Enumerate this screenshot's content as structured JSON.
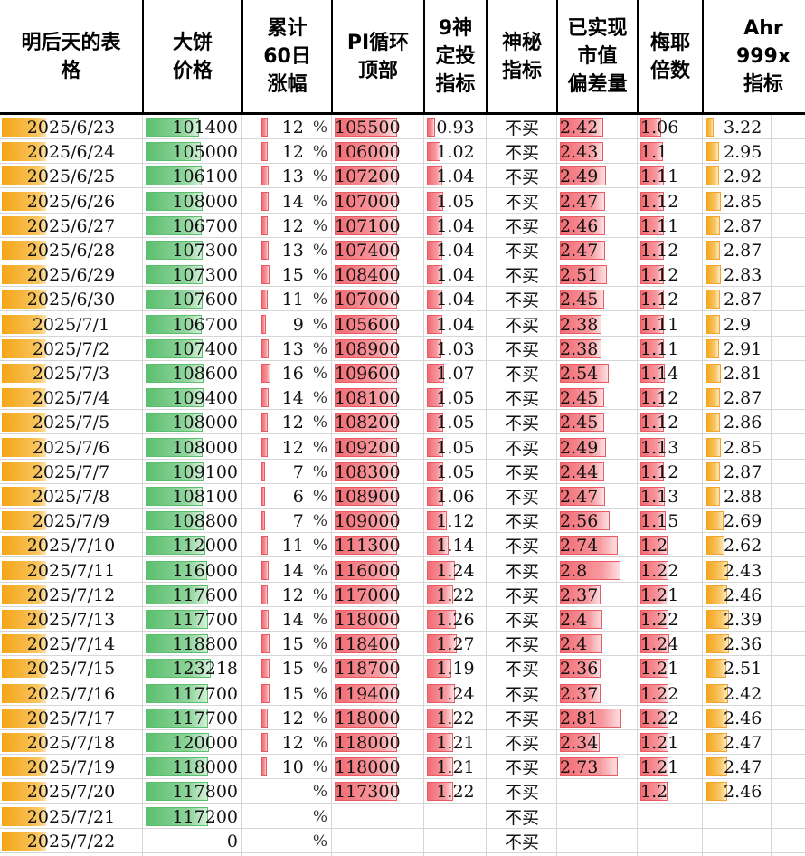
{
  "headers": {
    "date": "明后天的表\n格",
    "price": "大饼\n价格",
    "gain60": "累计\n60日\n涨幅",
    "pi_top": "PI循环\n顶部",
    "dca9": "9神\n定投\n指标",
    "secret": "神秘\n指标",
    "mvrv": "已实现\n市值\n偏差量",
    "mayer": "梅耶\n倍数",
    "ahr": "Ahr\n999x\n指标"
  },
  "percent_sign": "%",
  "rows": [
    {
      "date": "2025/6/23",
      "price": "101400",
      "gain": "12",
      "pi": "105500",
      "dca": "0.93",
      "secret": "不买",
      "mvrv": "2.42",
      "mayer": "1.06",
      "ahr": "3.22"
    },
    {
      "date": "2025/6/24",
      "price": "105000",
      "gain": "12",
      "pi": "106000",
      "dca": "1.02",
      "secret": "不买",
      "mvrv": "2.43",
      "mayer": "1.1",
      "ahr": "2.95"
    },
    {
      "date": "2025/6/25",
      "price": "106100",
      "gain": "13",
      "pi": "107200",
      "dca": "1.04",
      "secret": "不买",
      "mvrv": "2.49",
      "mayer": "1.11",
      "ahr": "2.92"
    },
    {
      "date": "2025/6/26",
      "price": "108000",
      "gain": "14",
      "pi": "107000",
      "dca": "1.05",
      "secret": "不买",
      "mvrv": "2.47",
      "mayer": "1.12",
      "ahr": "2.85"
    },
    {
      "date": "2025/6/27",
      "price": "106700",
      "gain": "12",
      "pi": "107100",
      "dca": "1.04",
      "secret": "不买",
      "mvrv": "2.46",
      "mayer": "1.11",
      "ahr": "2.87"
    },
    {
      "date": "2025/6/28",
      "price": "107300",
      "gain": "13",
      "pi": "107400",
      "dca": "1.04",
      "secret": "不买",
      "mvrv": "2.47",
      "mayer": "1.12",
      "ahr": "2.87"
    },
    {
      "date": "2025/6/29",
      "price": "107300",
      "gain": "15",
      "pi": "108400",
      "dca": "1.04",
      "secret": "不买",
      "mvrv": "2.51",
      "mayer": "1.12",
      "ahr": "2.83"
    },
    {
      "date": "2025/6/30",
      "price": "107600",
      "gain": "11",
      "pi": "107000",
      "dca": "1.04",
      "secret": "不买",
      "mvrv": "2.45",
      "mayer": "1.12",
      "ahr": "2.87"
    },
    {
      "date": "2025/7/1",
      "price": "106700",
      "gain": "9",
      "pi": "105600",
      "dca": "1.04",
      "secret": "不买",
      "mvrv": "2.38",
      "mayer": "1.11",
      "ahr": "2.9"
    },
    {
      "date": "2025/7/2",
      "price": "107400",
      "gain": "13",
      "pi": "108900",
      "dca": "1.03",
      "secret": "不买",
      "mvrv": "2.38",
      "mayer": "1.11",
      "ahr": "2.91"
    },
    {
      "date": "2025/7/3",
      "price": "108600",
      "gain": "16",
      "pi": "109600",
      "dca": "1.07",
      "secret": "不买",
      "mvrv": "2.54",
      "mayer": "1.14",
      "ahr": "2.81"
    },
    {
      "date": "2025/7/4",
      "price": "109400",
      "gain": "14",
      "pi": "108100",
      "dca": "1.05",
      "secret": "不买",
      "mvrv": "2.45",
      "mayer": "1.12",
      "ahr": "2.87"
    },
    {
      "date": "2025/7/5",
      "price": "108000",
      "gain": "12",
      "pi": "108200",
      "dca": "1.05",
      "secret": "不买",
      "mvrv": "2.45",
      "mayer": "1.12",
      "ahr": "2.86"
    },
    {
      "date": "2025/7/6",
      "price": "108000",
      "gain": "12",
      "pi": "109200",
      "dca": "1.05",
      "secret": "不买",
      "mvrv": "2.49",
      "mayer": "1.13",
      "ahr": "2.85"
    },
    {
      "date": "2025/7/7",
      "price": "109100",
      "gain": "7",
      "pi": "108300",
      "dca": "1.05",
      "secret": "不买",
      "mvrv": "2.44",
      "mayer": "1.12",
      "ahr": "2.87"
    },
    {
      "date": "2025/7/8",
      "price": "108100",
      "gain": "6",
      "pi": "108900",
      "dca": "1.06",
      "secret": "不买",
      "mvrv": "2.47",
      "mayer": "1.13",
      "ahr": "2.88"
    },
    {
      "date": "2025/7/9",
      "price": "108800",
      "gain": "7",
      "pi": "109000",
      "dca": "1.12",
      "secret": "不买",
      "mvrv": "2.56",
      "mayer": "1.15",
      "ahr": "2.69"
    },
    {
      "date": "2025/7/10",
      "price": "112000",
      "gain": "11",
      "pi": "111300",
      "dca": "1.14",
      "secret": "不买",
      "mvrv": "2.74",
      "mayer": "1.2",
      "ahr": "2.62"
    },
    {
      "date": "2025/7/11",
      "price": "116000",
      "gain": "14",
      "pi": "116000",
      "dca": "1.24",
      "secret": "不买",
      "mvrv": "2.8",
      "mayer": "1.22",
      "ahr": "2.43"
    },
    {
      "date": "2025/7/12",
      "price": "117600",
      "gain": "12",
      "pi": "117000",
      "dca": "1.22",
      "secret": "不买",
      "mvrv": "2.37",
      "mayer": "1.21",
      "ahr": "2.46"
    },
    {
      "date": "2025/7/13",
      "price": "117700",
      "gain": "14",
      "pi": "118000",
      "dca": "1.26",
      "secret": "不买",
      "mvrv": "2.4",
      "mayer": "1.22",
      "ahr": "2.39"
    },
    {
      "date": "2025/7/14",
      "price": "118800",
      "gain": "15",
      "pi": "118400",
      "dca": "1.27",
      "secret": "不买",
      "mvrv": "2.4",
      "mayer": "1.24",
      "ahr": "2.36"
    },
    {
      "date": "2025/7/15",
      "price": "123218",
      "gain": "15",
      "pi": "118700",
      "dca": "1.19",
      "secret": "不买",
      "mvrv": "2.36",
      "mayer": "1.21",
      "ahr": "2.51"
    },
    {
      "date": "2025/7/16",
      "price": "117700",
      "gain": "15",
      "pi": "119400",
      "dca": "1.24",
      "secret": "不买",
      "mvrv": "2.37",
      "mayer": "1.22",
      "ahr": "2.42"
    },
    {
      "date": "2025/7/17",
      "price": "117700",
      "gain": "12",
      "pi": "118000",
      "dca": "1.22",
      "secret": "不买",
      "mvrv": "2.81",
      "mayer": "1.22",
      "ahr": "2.46"
    },
    {
      "date": "2025/7/18",
      "price": "120000",
      "gain": "12",
      "pi": "118000",
      "dca": "1.21",
      "secret": "不买",
      "mvrv": "2.34",
      "mayer": "1.21",
      "ahr": "2.47"
    },
    {
      "date": "2025/7/19",
      "price": "118000",
      "gain": "10",
      "pi": "118000",
      "dca": "1.21",
      "secret": "不买",
      "mvrv": "2.73",
      "mayer": "1.21",
      "ahr": "2.47"
    },
    {
      "date": "2025/7/20",
      "price": "117800",
      "gain": "",
      "pi": "117300",
      "dca": "1.22",
      "secret": "不买",
      "mvrv": "",
      "mayer": "1.2",
      "ahr": "2.46"
    },
    {
      "date": "2025/7/21",
      "price": "117200",
      "gain": "",
      "pi": "",
      "dca": "",
      "secret": "不买",
      "mvrv": "",
      "mayer": "",
      "ahr": ""
    },
    {
      "date": "2025/7/22",
      "price": "0",
      "gain": "",
      "pi": "",
      "dca": "",
      "secret": "不买",
      "mvrv": "",
      "mayer": "",
      "ahr": ""
    }
  ],
  "colors": {
    "date_bar": "#f5a418",
    "price_bar": "#5bbf6e",
    "red_bar": "#f26b73",
    "ahr_bar": "#f5a418",
    "grid": "#d6d6d6"
  }
}
